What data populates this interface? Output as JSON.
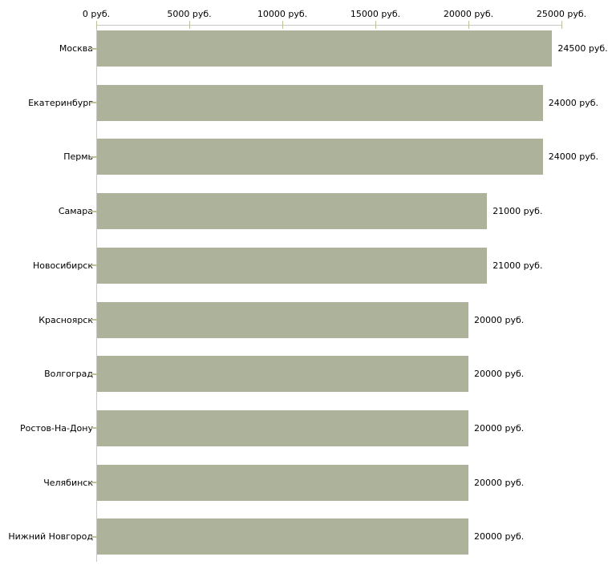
{
  "chart_data": {
    "type": "bar",
    "orientation": "horizontal",
    "title": "",
    "unit": "руб.",
    "categories": [
      "Москва",
      "Екатеринбург",
      "Пермь",
      "Самара",
      "Новосибирск",
      "Красноярск",
      "Волгоград",
      "Ростов-На-Дону",
      "Челябинск",
      "Нижний Новгород"
    ],
    "values": [
      24500,
      24000,
      24000,
      21000,
      21000,
      20000,
      20000,
      20000,
      20000,
      20000
    ],
    "value_labels": [
      "24500 руб.",
      "24000 руб.",
      "24000 руб.",
      "21000 руб.",
      "21000 руб.",
      "20000 руб.",
      "20000 руб.",
      "20000 руб.",
      "20000 руб.",
      "20000 руб."
    ],
    "x_axis": {
      "position": "top",
      "range": [
        0,
        25000
      ],
      "tick_values": [
        0,
        5000,
        10000,
        15000,
        20000,
        25000
      ],
      "tick_labels": [
        "0 руб.",
        "5000 руб.",
        "10000 руб.",
        "15000 руб.",
        "20000 руб.",
        "25000 руб."
      ]
    },
    "grid": false,
    "legend": false
  },
  "colors": {
    "bar_fill": "#adb39a",
    "axis_line": "#c8c8c8",
    "tick_mark": "#bfbf98",
    "label_text": "#000000",
    "background": "#ffffff"
  }
}
